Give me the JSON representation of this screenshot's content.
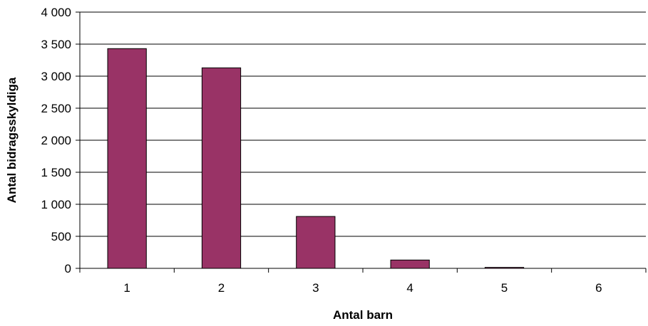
{
  "chart_data": {
    "type": "bar",
    "categories": [
      "1",
      "2",
      "3",
      "4",
      "5",
      "6"
    ],
    "values": [
      3430,
      3130,
      810,
      130,
      15,
      0
    ],
    "title": "",
    "xlabel": "Antal barn",
    "ylabel": "Antal bidragsskyldiga",
    "ylim": [
      0,
      4000
    ],
    "yticks": [
      0,
      500,
      1000,
      1500,
      2000,
      2500,
      3000,
      3500,
      4000
    ],
    "ytick_labels": [
      "0",
      "500",
      "1 000",
      "1 500",
      "2 000",
      "2 500",
      "3 000",
      "3 500",
      "4 000"
    ],
    "grid": true,
    "legend": "none",
    "colors": {
      "bar": "#993366",
      "gridline": "#000000",
      "axis": "#000000"
    }
  }
}
